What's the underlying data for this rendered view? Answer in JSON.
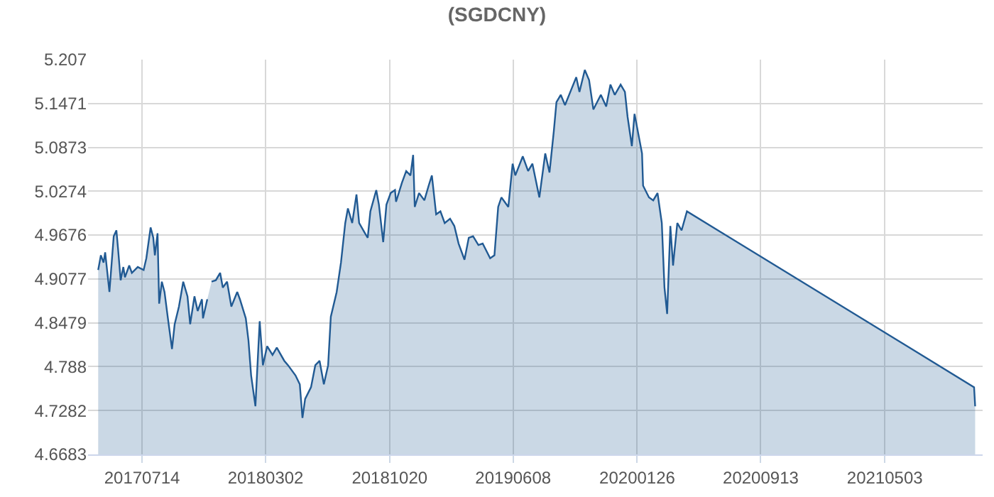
{
  "chart_data": {
    "type": "area",
    "title": "(SGDCNY)",
    "x": [
      "2017-04-23",
      "2017-04-28",
      "2017-05-03",
      "2017-05-06",
      "2017-05-14",
      "2017-05-22",
      "2017-05-27",
      "2017-05-30",
      "2017-06-04",
      "2017-06-09",
      "2017-06-12",
      "2017-06-20",
      "2017-06-25",
      "2017-07-06",
      "2017-07-17",
      "2017-07-22",
      "2017-07-30",
      "2017-08-04",
      "2017-08-07",
      "2017-08-12",
      "2017-08-15",
      "2017-08-20",
      "2017-08-25",
      "2017-08-31",
      "2017-09-08",
      "2017-09-13",
      "2017-09-21",
      "2017-09-29",
      "2017-10-07",
      "2017-10-12",
      "2017-10-20",
      "2017-10-26",
      "2017-11-03",
      "2017-11-05",
      "2017-11-13",
      "2017-11-16",
      "2017-11-21",
      "2017-11-29",
      "2017-12-07",
      "2017-12-12",
      "2017-12-20",
      "2017-12-28",
      "2018-01-08",
      "2018-01-13",
      "2018-01-24",
      "2018-01-29",
      "2018-02-03",
      "2018-02-11",
      "2018-02-19",
      "2018-02-25",
      "2018-03-05",
      "2018-03-15",
      "2018-03-23",
      "2018-04-06",
      "2018-04-13",
      "2018-04-27",
      "2018-05-05",
      "2018-05-10",
      "2018-05-15",
      "2018-05-26",
      "2018-06-03",
      "2018-06-11",
      "2018-06-19",
      "2018-06-27",
      "2018-07-02",
      "2018-07-13",
      "2018-07-21",
      "2018-07-29",
      "2018-08-03",
      "2018-08-11",
      "2018-08-19",
      "2018-08-24",
      "2018-09-04",
      "2018-09-09",
      "2018-09-14",
      "2018-09-25",
      "2018-09-30",
      "2018-10-08",
      "2018-10-14",
      "2018-10-22",
      "2018-10-30",
      "2018-11-01",
      "2018-11-12",
      "2018-11-20",
      "2018-11-28",
      "2018-12-03",
      "2018-12-06",
      "2018-12-14",
      "2018-12-24",
      "2019-01-01",
      "2019-01-07",
      "2019-01-15",
      "2019-01-23",
      "2019-01-31",
      "2019-02-10",
      "2019-02-18",
      "2019-02-26",
      "2019-03-09",
      "2019-03-17",
      "2019-03-25",
      "2019-04-04",
      "2019-04-12",
      "2019-04-26",
      "2019-05-04",
      "2019-05-11",
      "2019-05-17",
      "2019-05-30",
      "2019-06-07",
      "2019-06-12",
      "2019-06-26",
      "2019-07-06",
      "2019-07-14",
      "2019-07-27",
      "2019-08-07",
      "2019-08-15",
      "2019-08-23",
      "2019-08-28",
      "2019-09-05",
      "2019-09-13",
      "2019-09-24",
      "2019-10-04",
      "2019-10-10",
      "2019-10-20",
      "2019-10-28",
      "2019-11-05",
      "2019-11-19",
      "2019-11-29",
      "2019-12-07",
      "2019-12-15",
      "2019-12-26",
      "2020-01-03",
      "2020-01-08",
      "2020-01-16",
      "2020-01-21",
      "2020-02-04",
      "2020-02-06",
      "2020-02-17",
      "2020-02-25",
      "2020-03-04",
      "2020-03-12",
      "2020-03-17",
      "2020-03-22",
      "2020-03-28",
      "2020-04-02",
      "2020-04-10",
      "2020-04-18",
      "2020-04-28",
      "2021-10-17",
      "2021-10-19"
    ],
    "series": [
      {
        "color": "#215a93",
        "values": [
          4.92,
          4.94,
          4.93,
          4.944,
          4.89,
          4.966,
          4.974,
          4.95,
          4.906,
          4.924,
          4.91,
          4.926,
          4.916,
          4.924,
          4.92,
          4.936,
          4.978,
          4.964,
          4.94,
          4.97,
          4.874,
          4.904,
          4.89,
          4.856,
          4.812,
          4.846,
          4.87,
          4.904,
          4.884,
          4.846,
          4.884,
          4.864,
          4.88,
          4.854,
          4.88,
          null,
          4.904,
          4.906,
          4.916,
          4.896,
          4.904,
          4.87,
          4.89,
          4.88,
          4.854,
          4.824,
          4.776,
          4.734,
          4.85,
          4.79,
          4.816,
          4.804,
          4.814,
          4.796,
          4.79,
          4.776,
          4.764,
          4.718,
          4.744,
          4.76,
          4.79,
          4.796,
          4.764,
          4.79,
          4.856,
          4.89,
          4.93,
          4.984,
          5.004,
          4.984,
          5.023,
          4.984,
          4.97,
          4.964,
          5.0,
          5.029,
          5.009,
          4.958,
          5.009,
          5.025,
          5.029,
          5.013,
          5.039,
          5.055,
          5.049,
          5.077,
          5.006,
          5.025,
          5.015,
          5.035,
          5.049,
          4.996,
          5.0,
          4.984,
          4.99,
          4.98,
          4.956,
          4.934,
          4.964,
          4.966,
          4.954,
          4.956,
          4.936,
          4.94,
          5.006,
          5.019,
          5.006,
          5.065,
          5.049,
          5.075,
          5.055,
          5.065,
          5.019,
          5.079,
          5.053,
          5.109,
          5.149,
          5.159,
          5.145,
          5.165,
          5.183,
          5.163,
          5.193,
          5.179,
          5.139,
          5.159,
          5.143,
          5.173,
          5.159,
          5.173,
          5.163,
          5.129,
          5.089,
          5.133,
          5.079,
          5.035,
          5.019,
          5.015,
          5.025,
          4.984,
          4.896,
          4.86,
          4.98,
          4.926,
          4.984,
          4.974,
          5.0,
          4.76,
          4.734
        ]
      }
    ],
    "xlim": [
      "2017-04-04",
      "2021-11-02"
    ],
    "xticks": [
      {
        "value": "2017-07-14",
        "label": "20170714"
      },
      {
        "value": "2018-03-02",
        "label": "20180302"
      },
      {
        "value": "2018-10-20",
        "label": "20181020"
      },
      {
        "value": "2019-06-08",
        "label": "20190608"
      },
      {
        "value": "2020-01-26",
        "label": "20200126"
      },
      {
        "value": "2020-09-13",
        "label": "20200913"
      },
      {
        "value": "2021-05-03",
        "label": "20210503"
      }
    ],
    "ylim": [
      4.6683,
      5.207
    ],
    "yticks": [
      4.6683,
      4.7282,
      4.788,
      4.8479,
      4.9077,
      4.9676,
      5.0274,
      5.0873,
      5.1471,
      5.207
    ],
    "grid": true,
    "marker": "none",
    "line_style": "solid"
  }
}
